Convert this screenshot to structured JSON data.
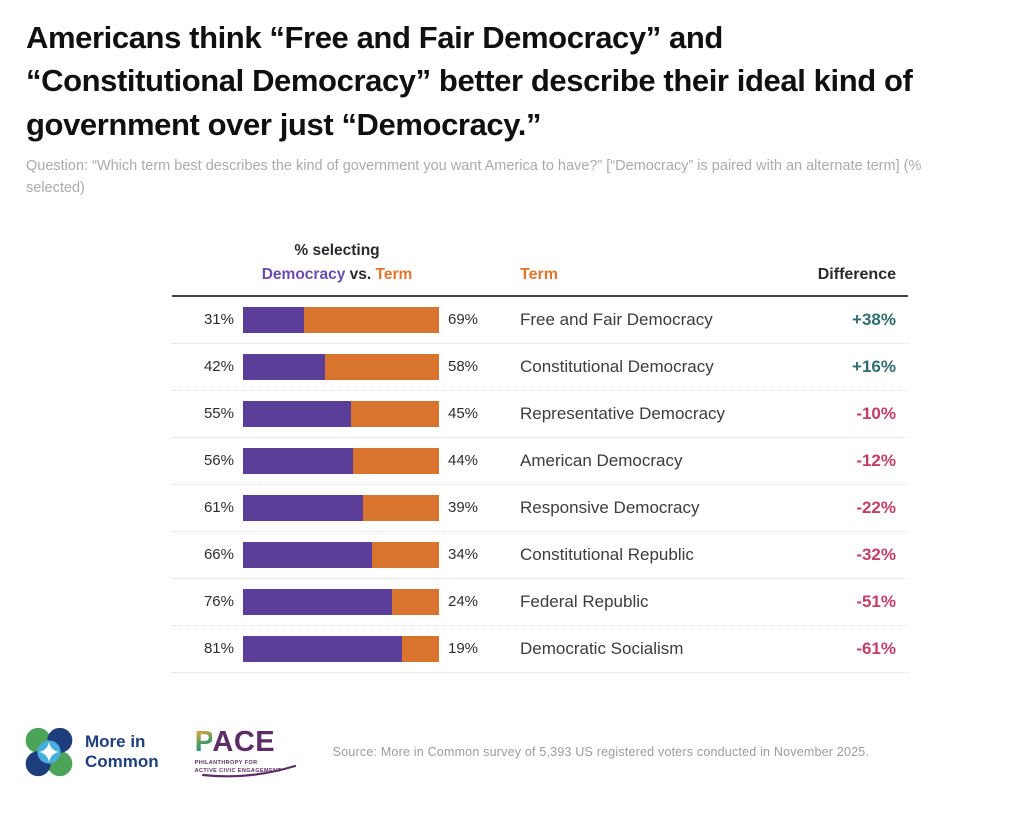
{
  "header": {
    "title": "Americans think “Free and Fair Democracy” and “Constitutional Democracy” better describe their ideal kind of government over just “Democracy.”",
    "question": "Question: “Which term best describes the kind of government you want America to have?” [“Democracy” is paired with an alternate term] (% selected)"
  },
  "table": {
    "header": {
      "selecting": "% selecting",
      "democracy": "Democracy",
      "vs": "vs.",
      "term_vs": "Term",
      "term_col": "Term",
      "difference_col": "Difference"
    },
    "rows": [
      {
        "democracy_pct": "31%",
        "democracy_value": 31,
        "term_pct": "69%",
        "term_value": 69,
        "term": "Free and Fair Democracy",
        "difference": "+38%",
        "positive": true
      },
      {
        "democracy_pct": "42%",
        "democracy_value": 42,
        "term_pct": "58%",
        "term_value": 58,
        "term": "Constitutional Democracy",
        "difference": "+16%",
        "positive": true
      },
      {
        "democracy_pct": "55%",
        "democracy_value": 55,
        "term_pct": "45%",
        "term_value": 45,
        "term": "Representative Democracy",
        "difference": "-10%",
        "positive": false
      },
      {
        "democracy_pct": "56%",
        "democracy_value": 56,
        "term_pct": "44%",
        "term_value": 44,
        "term": "American Democracy",
        "difference": "-12%",
        "positive": false
      },
      {
        "democracy_pct": "61%",
        "democracy_value": 61,
        "term_pct": "39%",
        "term_value": 39,
        "term": "Responsive Democracy",
        "difference": "-22%",
        "positive": false
      },
      {
        "democracy_pct": "66%",
        "democracy_value": 66,
        "term_pct": "34%",
        "term_value": 34,
        "term": "Constitutional Republic",
        "difference": "-32%",
        "positive": false
      },
      {
        "democracy_pct": "76%",
        "democracy_value": 76,
        "term_pct": "24%",
        "term_value": 24,
        "term": "Federal Republic",
        "difference": "-51%",
        "positive": false
      },
      {
        "democracy_pct": "81%",
        "democracy_value": 81,
        "term_pct": "19%",
        "term_value": 19,
        "term": "Democratic Socialism",
        "difference": "-61%",
        "positive": false
      }
    ]
  },
  "footer": {
    "mic_line1": "More in",
    "mic_line2": "Common",
    "pace": "PACE",
    "pace_p": "P",
    "pace_rest": "ACE",
    "pace_sub1": "PHILANTHROPY FOR",
    "pace_sub2": "ACTIVE CIVIC ENGAGEMENT",
    "source": "Source: More in Common survey of 5,393 US registered voters conducted in November 2025."
  },
  "colors": {
    "democracy": "#5b3e98",
    "term": "#d9742e",
    "positive": "#2e6e6c",
    "negative": "#c23e68",
    "legend_democracy": "#6a4cb0",
    "legend_term": "#e0762e",
    "mic_navy": "#1e3e7c",
    "pace_purple": "#5c2d66"
  },
  "chart_data": {
    "type": "bar",
    "subtype": "horizontal-stacked-paired-choice",
    "title": "Americans think “Free and Fair Democracy” and “Constitutional Democracy” better describe their ideal kind of government over just “Democracy.”",
    "question": "Question: “Which term best describes the kind of government you want America to have?” [“Democracy” is paired with an alternate term] (% selected)",
    "categories": [
      "Free and Fair Democracy",
      "Constitutional Democracy",
      "Representative Democracy",
      "American Democracy",
      "Responsive Democracy",
      "Constitutional Republic",
      "Federal Republic",
      "Democratic Socialism"
    ],
    "series": [
      {
        "name": "Democracy",
        "color": "#5b3e98",
        "values": [
          31,
          42,
          55,
          56,
          61,
          66,
          76,
          81
        ]
      },
      {
        "name": "Term",
        "color": "#d9742e",
        "values": [
          69,
          58,
          45,
          44,
          39,
          34,
          24,
          19
        ]
      }
    ],
    "difference_labels": [
      "+38%",
      "+16%",
      "-10%",
      "-12%",
      "-22%",
      "-32%",
      "-51%",
      "-61%"
    ],
    "difference_values": [
      38,
      16,
      -10,
      -12,
      -22,
      -32,
      -51,
      -61
    ],
    "legend": "Democracy vs. Term",
    "columns": [
      "% selecting Democracy vs. Term",
      "Term",
      "Difference"
    ],
    "xlim": [
      0,
      100
    ],
    "grid": false,
    "source": "Source: More in Common survey of 5,393 US registered voters conducted in November 2025."
  }
}
